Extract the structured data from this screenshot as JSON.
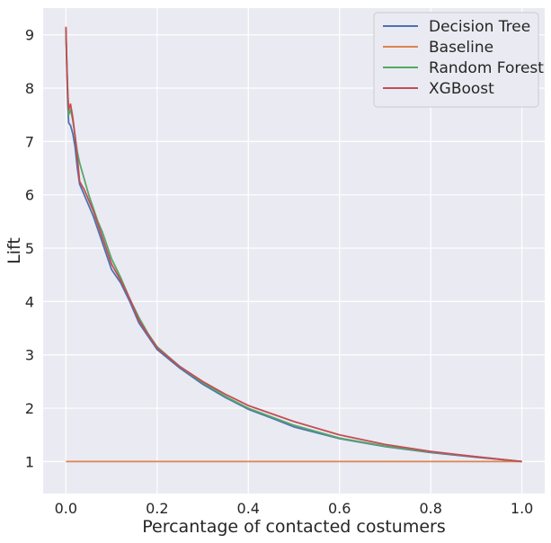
{
  "chart_data": {
    "type": "line",
    "xlabel": "Percantage of contacted costumers",
    "ylabel": "Lift",
    "xlim": [
      -0.05,
      1.05
    ],
    "ylim": [
      0.4,
      9.5
    ],
    "xticks": [
      0.0,
      0.2,
      0.4,
      0.6,
      0.8,
      1.0
    ],
    "xtick_labels": [
      "0.0",
      "0.2",
      "0.4",
      "0.6",
      "0.8",
      "1.0"
    ],
    "yticks": [
      1,
      2,
      3,
      4,
      5,
      6,
      7,
      8,
      9
    ],
    "ytick_labels": [
      "1",
      "2",
      "3",
      "4",
      "5",
      "6",
      "7",
      "8",
      "9"
    ],
    "grid": true,
    "legend_position": "top-right",
    "series": [
      {
        "name": "Decision Tree",
        "color": "#4c72b0",
        "points": [
          [
            0.0,
            9.1
          ],
          [
            0.002,
            8.3
          ],
          [
            0.004,
            7.7
          ],
          [
            0.006,
            7.35
          ],
          [
            0.01,
            7.3
          ],
          [
            0.015,
            7.15
          ],
          [
            0.02,
            6.9
          ],
          [
            0.025,
            6.5
          ],
          [
            0.03,
            6.2
          ],
          [
            0.04,
            6.0
          ],
          [
            0.05,
            5.8
          ],
          [
            0.06,
            5.6
          ],
          [
            0.07,
            5.35
          ],
          [
            0.08,
            5.1
          ],
          [
            0.09,
            4.85
          ],
          [
            0.1,
            4.6
          ],
          [
            0.12,
            4.35
          ],
          [
            0.14,
            4.0
          ],
          [
            0.16,
            3.6
          ],
          [
            0.18,
            3.35
          ],
          [
            0.2,
            3.1
          ],
          [
            0.25,
            2.75
          ],
          [
            0.3,
            2.45
          ],
          [
            0.35,
            2.2
          ],
          [
            0.4,
            1.98
          ],
          [
            0.45,
            1.82
          ],
          [
            0.5,
            1.65
          ],
          [
            0.6,
            1.43
          ],
          [
            0.7,
            1.28
          ],
          [
            0.8,
            1.17
          ],
          [
            0.9,
            1.08
          ],
          [
            1.0,
            1.0
          ]
        ]
      },
      {
        "name": "Baseline",
        "color": "#dd8452",
        "points": [
          [
            0.0,
            1.0
          ],
          [
            1.0,
            1.0
          ]
        ]
      },
      {
        "name": "Random Forest",
        "color": "#55a868",
        "points": [
          [
            0.0,
            9.0
          ],
          [
            0.002,
            8.5
          ],
          [
            0.004,
            7.9
          ],
          [
            0.006,
            7.5
          ],
          [
            0.01,
            7.6
          ],
          [
            0.015,
            7.4
          ],
          [
            0.02,
            7.1
          ],
          [
            0.025,
            6.8
          ],
          [
            0.03,
            6.6
          ],
          [
            0.04,
            6.3
          ],
          [
            0.05,
            6.0
          ],
          [
            0.06,
            5.75
          ],
          [
            0.07,
            5.5
          ],
          [
            0.08,
            5.3
          ],
          [
            0.09,
            5.05
          ],
          [
            0.1,
            4.8
          ],
          [
            0.12,
            4.45
          ],
          [
            0.14,
            4.05
          ],
          [
            0.16,
            3.7
          ],
          [
            0.18,
            3.4
          ],
          [
            0.2,
            3.15
          ],
          [
            0.25,
            2.78
          ],
          [
            0.3,
            2.48
          ],
          [
            0.35,
            2.22
          ],
          [
            0.4,
            2.0
          ],
          [
            0.45,
            1.84
          ],
          [
            0.5,
            1.68
          ],
          [
            0.6,
            1.44
          ],
          [
            0.7,
            1.29
          ],
          [
            0.8,
            1.18
          ],
          [
            0.9,
            1.09
          ],
          [
            1.0,
            1.0
          ]
        ]
      },
      {
        "name": "XGBoost",
        "color": "#c44e52",
        "points": [
          [
            0.0,
            9.15
          ],
          [
            0.002,
            8.4
          ],
          [
            0.004,
            7.9
          ],
          [
            0.006,
            7.6
          ],
          [
            0.01,
            7.7
          ],
          [
            0.015,
            7.45
          ],
          [
            0.02,
            7.1
          ],
          [
            0.025,
            6.7
          ],
          [
            0.03,
            6.25
          ],
          [
            0.04,
            6.1
          ],
          [
            0.05,
            5.9
          ],
          [
            0.06,
            5.7
          ],
          [
            0.07,
            5.45
          ],
          [
            0.08,
            5.2
          ],
          [
            0.09,
            4.95
          ],
          [
            0.1,
            4.7
          ],
          [
            0.12,
            4.4
          ],
          [
            0.14,
            4.05
          ],
          [
            0.16,
            3.65
          ],
          [
            0.18,
            3.38
          ],
          [
            0.2,
            3.13
          ],
          [
            0.25,
            2.78
          ],
          [
            0.3,
            2.5
          ],
          [
            0.35,
            2.26
          ],
          [
            0.4,
            2.05
          ],
          [
            0.45,
            1.9
          ],
          [
            0.5,
            1.75
          ],
          [
            0.6,
            1.5
          ],
          [
            0.7,
            1.32
          ],
          [
            0.8,
            1.19
          ],
          [
            0.9,
            1.09
          ],
          [
            1.0,
            1.0
          ]
        ]
      }
    ]
  }
}
